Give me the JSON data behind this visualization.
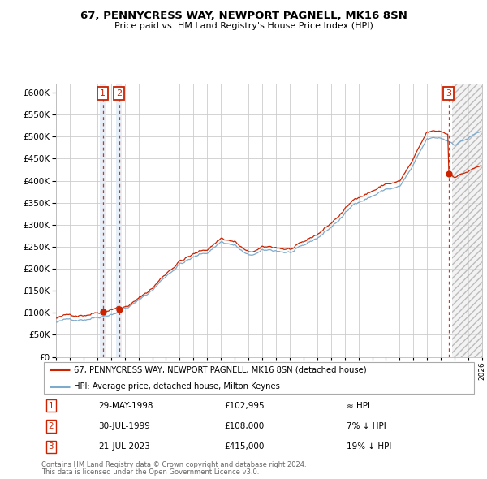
{
  "title1": "67, PENNYCRESS WAY, NEWPORT PAGNELL, MK16 8SN",
  "title2": "Price paid vs. HM Land Registry's House Price Index (HPI)",
  "legend_line1": "67, PENNYCRESS WAY, NEWPORT PAGNELL, MK16 8SN (detached house)",
  "legend_line2": "HPI: Average price, detached house, Milton Keynes",
  "transactions": [
    {
      "num": 1,
      "date": "29-MAY-1998",
      "price": 102995,
      "rel": "≈ HPI",
      "x_year": 1998.41
    },
    {
      "num": 2,
      "date": "30-JUL-1999",
      "price": 108000,
      "rel": "7% ↓ HPI",
      "x_year": 1999.58
    },
    {
      "num": 3,
      "date": "21-JUL-2023",
      "price": 415000,
      "rel": "19% ↓ HPI",
      "x_year": 2023.55
    }
  ],
  "footer1": "Contains HM Land Registry data © Crown copyright and database right 2024.",
  "footer2": "This data is licensed under the Open Government Licence v3.0.",
  "hpi_color": "#7eaacc",
  "price_color": "#cc2200",
  "vline_color": "#cc2200",
  "box_color": "#cc2200",
  "grid_color": "#cccccc",
  "bg_color": "#ffffff",
  "vspan_color": "#dce8f5",
  "ylim_max": 620000,
  "ylim_min": 0,
  "xlim_min": 1995.0,
  "xlim_max": 2026.0
}
